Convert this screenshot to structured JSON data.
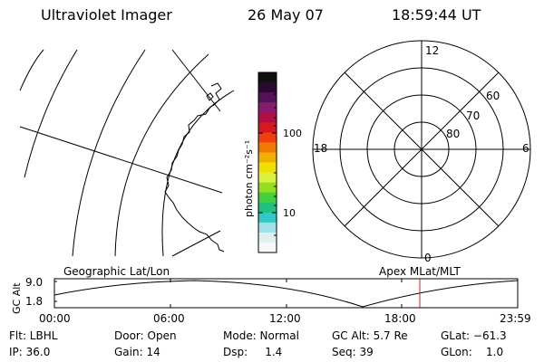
{
  "header": {
    "title": "Ultraviolet Imager",
    "date": "26 May 07",
    "time": "18:59:44 UT"
  },
  "colorbar": {
    "unit_label": "photon cm⁻²s⁻¹",
    "ticks": [
      "100",
      "10"
    ],
    "colors": [
      "#101010",
      "#2a0a30",
      "#55105a",
      "#8a1a70",
      "#b01040",
      "#d81820",
      "#f04010",
      "#f07a00",
      "#f0b000",
      "#f0e000",
      "#d8f040",
      "#90e020",
      "#40d040",
      "#20c080",
      "#30c8c8",
      "#a0e0e8",
      "#e0f0f0",
      "#f4f8f8"
    ]
  },
  "polar": {
    "lat_labels": [
      "60",
      "70",
      "80"
    ],
    "mlt_labels": {
      "top": "12",
      "bottom": "0",
      "left": "18",
      "right": "6"
    }
  },
  "timeline": {
    "left_label": "Geographic Lat/Lon",
    "right_label": "Apex MLat/MLT",
    "y_axis_label": "GC Alt",
    "y_ticks": [
      "9.0",
      "1.8"
    ],
    "x_ticks": [
      "00:00",
      "06:00",
      "12:00",
      "18:00",
      "23:59"
    ],
    "marker_color": "#d02020"
  },
  "info": {
    "flt": "Flt: LBHL",
    "door": "Door: Open",
    "mode": "Mode: Normal",
    "gc_alt": "GC Alt: 5.7 Re",
    "glat": "GLat: −61.3",
    "ip": "IP: 36.0",
    "gain": "Gain: 14",
    "dsp": "Dsp:     1.4",
    "seq": "Seq: 39",
    "glon": "GLon:    1.0"
  }
}
